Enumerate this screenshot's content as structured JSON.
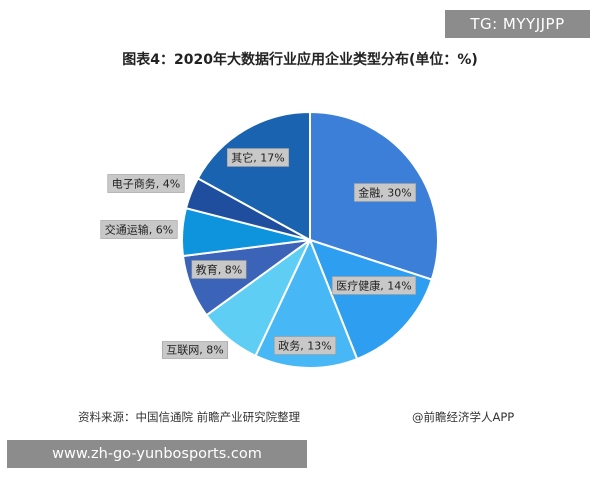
{
  "badge": {
    "text": "TG: MYYJJPP"
  },
  "title": "图表4：2020年大数据行业应用企业类型分布(单位：%)",
  "footer": {
    "source": "资料来源：中国信通院 前瞻产业研究院整理",
    "credit": "@前瞻经济学人APP"
  },
  "url_banner": {
    "text": "www.zh-go-yunbosports.com"
  },
  "chart_data": {
    "type": "pie",
    "title": "图表4：2020年大数据行业应用企业类型分布(单位：%)",
    "slices": [
      {
        "name": "金融",
        "value": 30,
        "label": "金融, 30%",
        "color": "#3b7fd9"
      },
      {
        "name": "医疗健康",
        "value": 14,
        "label": "医疗健康, 14%",
        "color": "#2e9ff0"
      },
      {
        "name": "政务",
        "value": 13,
        "label": "政务, 13%",
        "color": "#47b8f5"
      },
      {
        "name": "互联网",
        "value": 8,
        "label": "互联网, 8%",
        "color": "#5fcef5"
      },
      {
        "name": "教育",
        "value": 8,
        "label": "教育, 8%",
        "color": "#3b63b8"
      },
      {
        "name": "交通运输",
        "value": 6,
        "label": "交通运输, 6%",
        "color": "#0d94dc"
      },
      {
        "name": "电子商务",
        "value": 4,
        "label": "电子商务, 4%",
        "color": "#1f4e9e"
      },
      {
        "name": "其它",
        "value": 17,
        "label": "其它, 17%",
        "color": "#1a63b0"
      }
    ],
    "start_angle_deg": 0,
    "direction": "clockwise"
  }
}
